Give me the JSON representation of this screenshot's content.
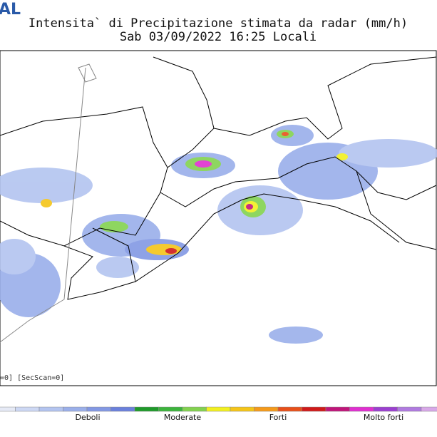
{
  "header": {
    "logo": "AL",
    "title": "Intensita` di Precipitazione stimata da radar (mm/h)",
    "subtitle": "Sab 03/09/2022 16:25 Locali"
  },
  "map": {
    "scan_note": "=0] [SecScan=0]"
  },
  "legend": {
    "colors": [
      "#e6eaf6",
      "#cdd8f4",
      "#b3c4f0",
      "#9aafea",
      "#8298e4",
      "#6a80dc",
      "#1f9a2a",
      "#3cb43c",
      "#82d24f",
      "#f2f020",
      "#f5c518",
      "#f59a1a",
      "#e8501a",
      "#d01a1a",
      "#c0157a",
      "#e02fd0",
      "#9b3fd0",
      "#b07ae0",
      "#d8a8e8",
      "#f0d0e0"
    ],
    "labels": [
      "Deboli",
      "Moderate",
      "Forti",
      "Molto forti"
    ]
  }
}
